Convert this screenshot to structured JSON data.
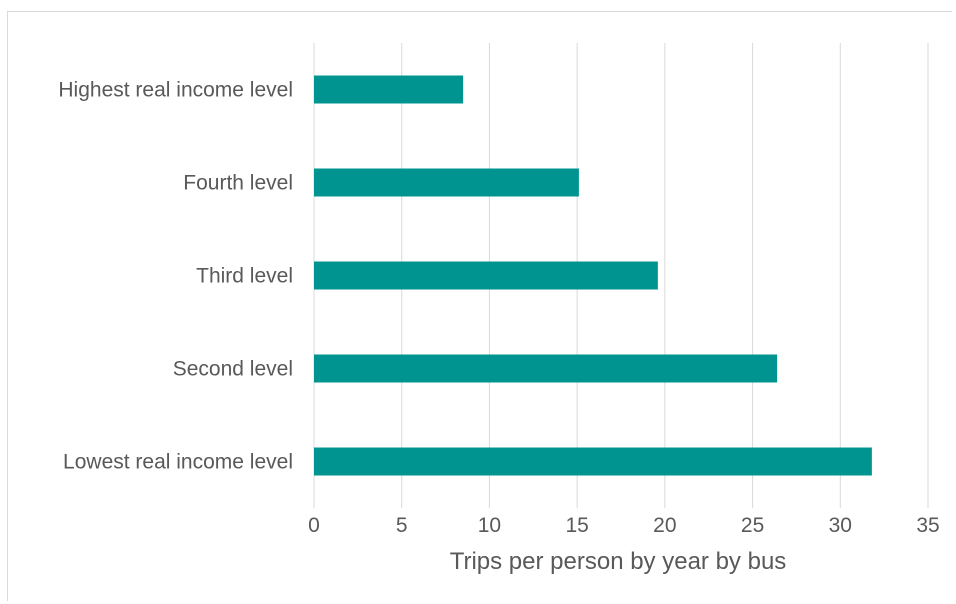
{
  "chart_data": {
    "type": "bar",
    "orientation": "horizontal",
    "categories": [
      "Highest real income level",
      "Fourth level",
      "Third level",
      "Second level",
      "Lowest real income level"
    ],
    "values": [
      8.5,
      15.1,
      19.6,
      26.4,
      31.8
    ],
    "xlabel": "Trips per person by year by bus",
    "xlim": [
      0,
      35
    ],
    "xticks": [
      "0",
      "5",
      "10",
      "15",
      "20",
      "25",
      "30",
      "35"
    ],
    "grid": true,
    "bar_color": "#009490",
    "grid_color": "#d9d9d9"
  }
}
